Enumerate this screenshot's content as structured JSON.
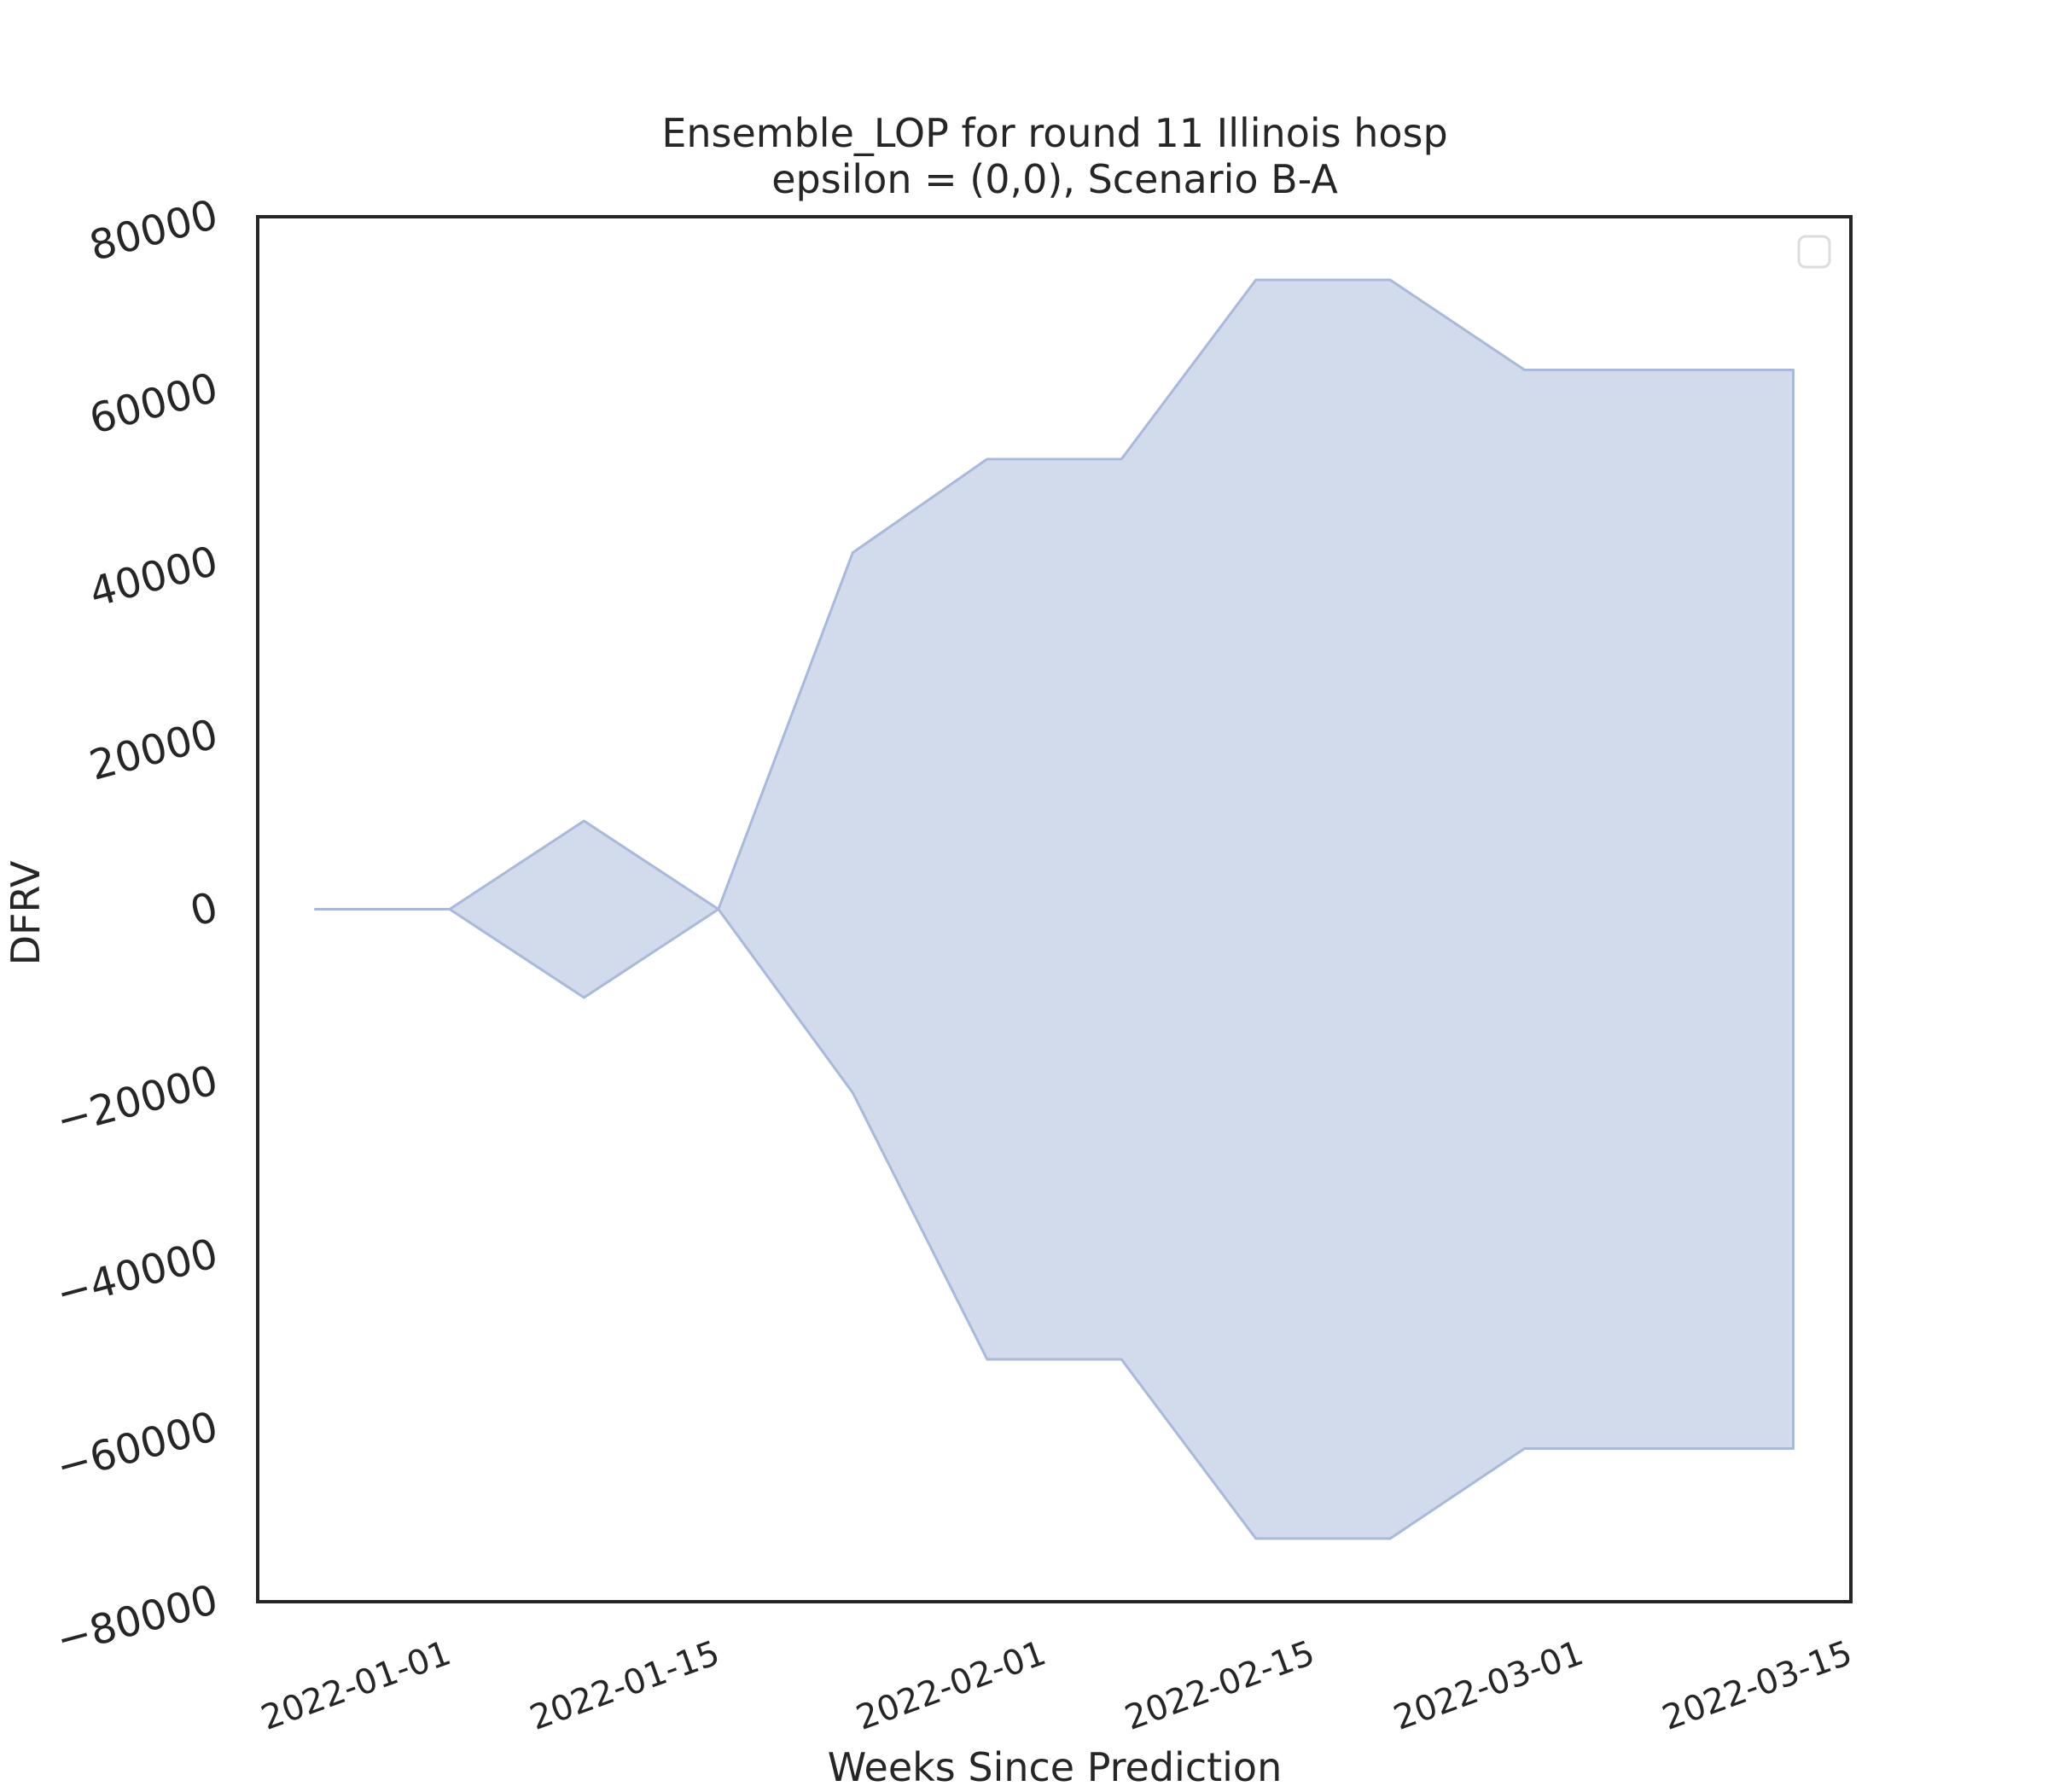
{
  "chart_data": {
    "type": "area",
    "title_line1": "Ensemble_LOP for round 11 Illinois hosp",
    "title_line2": "epsilon = (0,0), Scenario B-A",
    "xlabel": "Weeks Since Prediction",
    "ylabel": "DFRV",
    "ylim": [
      -80000,
      80000
    ],
    "xlim": [
      "2021-12-22",
      "2022-03-15"
    ],
    "x_tick_labels": [
      "2022-01-01",
      "2022-01-15",
      "2022-02-01",
      "2022-02-15",
      "2022-03-01",
      "2022-03-15"
    ],
    "y_tick_labels": [
      "80000",
      "60000",
      "40000",
      "20000",
      "0",
      "−20000",
      "−40000",
      "−60000",
      "−80000"
    ],
    "y_ticks": [
      80000,
      60000,
      40000,
      20000,
      0,
      -20000,
      -40000,
      -60000,
      -80000
    ],
    "grid": false,
    "legend": "top-right (empty)",
    "fill_color": "#b4c3e0",
    "edge_color": "#a9b9dc",
    "series": [
      {
        "x": [
          "2021-12-25",
          "2022-01-01",
          "2022-01-08",
          "2022-01-15",
          "2022-01-22",
          "2022-01-29",
          "2022-02-05",
          "2022-02-12",
          "2022-02-19",
          "2022-02-26",
          "2022-03-05",
          "2022-03-12"
        ],
        "upper": [
          0,
          0,
          10200,
          0,
          41200,
          52000,
          52000,
          72700,
          72700,
          62300,
          62300,
          62300
        ],
        "lower": [
          0,
          0,
          -10200,
          0,
          -21200,
          -52000,
          -52000,
          -72700,
          -72700,
          -62300,
          -62300,
          -62300
        ]
      }
    ]
  }
}
